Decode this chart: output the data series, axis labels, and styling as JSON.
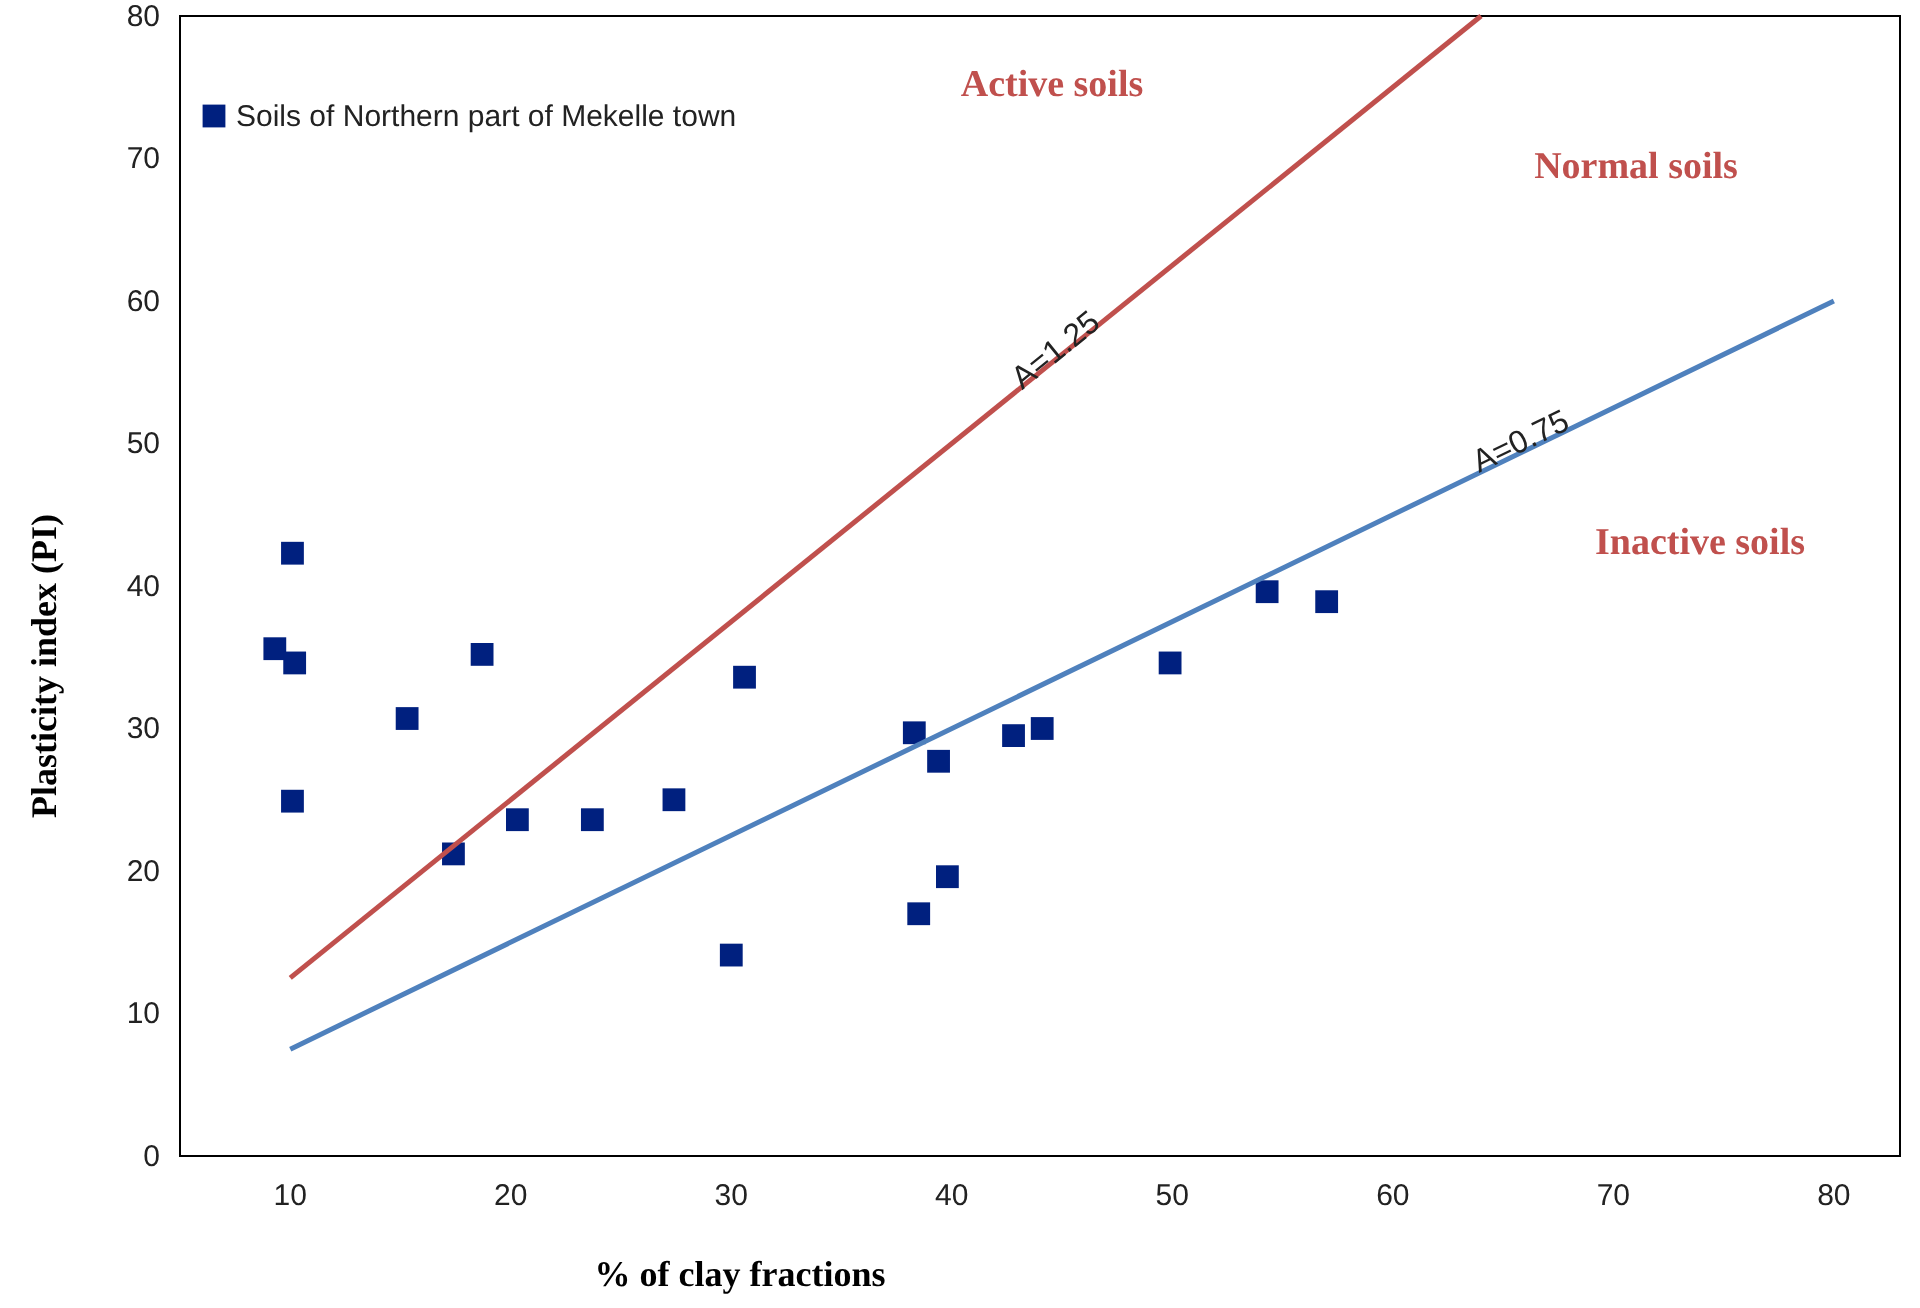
{
  "chart_data": {
    "type": "scatter",
    "xlabel": "% of clay fractions",
    "ylabel": "Plasticity index (PI)",
    "xlim": [
      5,
      83
    ],
    "ylim": [
      0,
      80
    ],
    "xticks": [
      10,
      20,
      30,
      40,
      50,
      60,
      70,
      80
    ],
    "yticks": [
      0,
      10,
      20,
      30,
      40,
      50,
      60,
      70,
      80
    ],
    "grid": false,
    "legend": "top left",
    "series": [
      {
        "name": "Soils of Northern part of Mekelle town",
        "marker": "square",
        "color": "#00207f",
        "x": [
          9.3,
          10.1,
          10.2,
          10.1,
          15.3,
          17.4,
          18.7,
          20.3,
          23.7,
          27.4,
          30.0,
          30.6,
          38.3,
          38.5,
          39.4,
          39.8,
          42.8,
          44.1,
          49.9,
          54.3,
          57.0
        ],
        "values": [
          35.6,
          42.3,
          34.6,
          24.9,
          30.7,
          21.2,
          35.2,
          23.6,
          23.6,
          25.0,
          14.1,
          33.6,
          29.7,
          17.0,
          27.7,
          19.6,
          29.5,
          30.0,
          34.6,
          39.6,
          38.9
        ]
      },
      {
        "type": "line",
        "marker": "none",
        "color": "#c0504d",
        "x": [
          10,
          64
        ],
        "values": [
          12.5,
          80
        ]
      },
      {
        "type": "line",
        "marker": "none",
        "color": "#4f81bd",
        "x": [
          10,
          80
        ],
        "values": [
          7.5,
          60
        ]
      }
    ],
    "annotations": [
      "Active soils",
      "Normal soils",
      "Inactive soils",
      {
        "text": "A=1.25",
        "x": 45,
        "y": 56
      },
      {
        "text": "A=0.75",
        "x": 66,
        "y": 49.5
      }
    ]
  }
}
